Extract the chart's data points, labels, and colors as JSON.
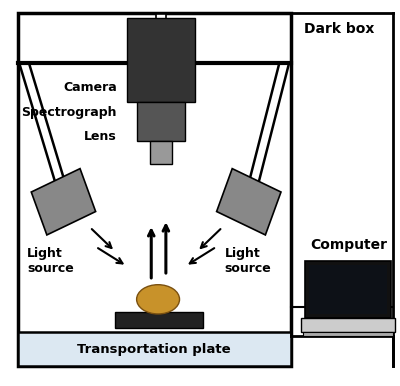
{
  "bg_color": "#ffffff",
  "camera_color": "#333333",
  "spectrograph_color": "#555555",
  "lens_color": "#999999",
  "light_color": "#888888",
  "plate_dark_color": "#222222",
  "plate_light_color": "#dce8f2",
  "kiwi_color": "#c8922a",
  "kiwi_edge": "#7a5010",
  "laptop_screen_color": "#1a1a1a",
  "laptop_body_color": "#cccccc",
  "laptop_bezel": "#111111",
  "dark_box_label": "Dark box",
  "computer_label": "Computer",
  "camera_label": "Camera",
  "spectrograph_label": "Spectrograph",
  "lens_label": "Lens",
  "light_left_label": "Light\nsource",
  "light_right_label": "Light\nsource",
  "transport_label": "Transportation plate"
}
